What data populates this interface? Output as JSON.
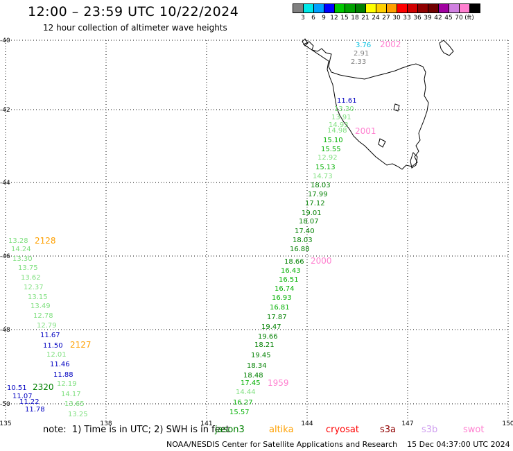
{
  "title": "12:00 – 23:59 UTC 10/22/2024",
  "subtitle": "12 hour collection of altimeter wave heights",
  "legend": {
    "colors": [
      "#808080",
      "#00e8e8",
      "#00a0ff",
      "#0000ff",
      "#00c800",
      "#00a000",
      "#008000",
      "#ffff00",
      "#ffd000",
      "#ffa000",
      "#ff0000",
      "#d00000",
      "#900000",
      "#700000",
      "#a000a0",
      "#d080e0",
      "#ff80d0",
      "#000000"
    ],
    "labels": [
      "3",
      "6",
      "9",
      "12",
      "15",
      "18",
      "21",
      "24",
      "27",
      "30",
      "33",
      "36",
      "39",
      "42",
      "45",
      "70",
      "(ft)"
    ]
  },
  "axes": {
    "lon_ticks": [
      "135",
      "138",
      "141",
      "144",
      "147",
      "150"
    ],
    "lat_ticks": [
      "-40",
      "-42",
      "-44",
      "-46",
      "-48",
      "-50"
    ]
  },
  "tracks": [
    {
      "time": "2002",
      "color": "#ff80d0",
      "points": [
        {
          "v": "3.76",
          "c": "#00c0e0"
        },
        {
          "v": "2.91",
          "c": "#808080"
        },
        {
          "v": "2.33",
          "c": "#808080"
        }
      ]
    },
    {
      "time": "2001",
      "color": "#ff80d0",
      "points": [
        {
          "v": "11.61",
          "c": "#0000c0"
        },
        {
          "v": "13.30",
          "c": "#80e080"
        },
        {
          "v": "13.91",
          "c": "#80e080"
        },
        {
          "v": "14.93",
          "c": "#80e080"
        },
        {
          "v": "14.98",
          "c": "#80e080"
        },
        {
          "v": "15.10",
          "c": "#00b000"
        },
        {
          "v": "15.55",
          "c": "#00b000"
        },
        {
          "v": "12.92",
          "c": "#80e080"
        },
        {
          "v": "15.13",
          "c": "#00b000"
        },
        {
          "v": "14.73",
          "c": "#80e080"
        },
        {
          "v": "18.03",
          "c": "#008000"
        },
        {
          "v": "17.99",
          "c": "#008000"
        },
        {
          "v": "17.12",
          "c": "#008000"
        },
        {
          "v": "19.01",
          "c": "#008000"
        },
        {
          "v": "18.07",
          "c": "#008000"
        },
        {
          "v": "17.40",
          "c": "#008000"
        },
        {
          "v": "18.03",
          "c": "#008000"
        },
        {
          "v": "16.88",
          "c": "#008000"
        }
      ]
    },
    {
      "time": "2000",
      "color": "#ff80d0",
      "points": [
        {
          "v": "18.66",
          "c": "#008000"
        },
        {
          "v": "16.43",
          "c": "#00b000"
        },
        {
          "v": "16.51",
          "c": "#00b000"
        },
        {
          "v": "16.74",
          "c": "#00b000"
        },
        {
          "v": "16.93",
          "c": "#00b000"
        },
        {
          "v": "16.81",
          "c": "#00b000"
        },
        {
          "v": "17.87",
          "c": "#008000"
        },
        {
          "v": "19.47",
          "c": "#008000"
        },
        {
          "v": "19.66",
          "c": "#008000"
        },
        {
          "v": "18.21",
          "c": "#008000"
        },
        {
          "v": "19.45",
          "c": "#008000"
        },
        {
          "v": "18.34",
          "c": "#008000"
        },
        {
          "v": "18.48",
          "c": "#008000"
        },
        {
          "v": "17.45",
          "c": "#00b000"
        }
      ]
    },
    {
      "time": "1959",
      "color": "#ff80d0",
      "points": [
        {
          "v": "14.44",
          "c": "#80e080"
        },
        {
          "v": "16.27",
          "c": "#00b000"
        },
        {
          "v": "15.57",
          "c": "#00b000"
        }
      ]
    },
    {
      "time": "2128",
      "color": "#ffa000",
      "points": [
        {
          "v": "13.28",
          "c": "#80e080"
        },
        {
          "v": "14.24",
          "c": "#80e080"
        },
        {
          "v": "13.30",
          "c": "#80e080"
        },
        {
          "v": "13.75",
          "c": "#80e080"
        },
        {
          "v": "13.62",
          "c": "#80e080"
        },
        {
          "v": "12.37",
          "c": "#80e080"
        },
        {
          "v": "13.15",
          "c": "#80e080"
        },
        {
          "v": "13.49",
          "c": "#80e080"
        },
        {
          "v": "12.78",
          "c": "#80e080"
        },
        {
          "v": "12.79",
          "c": "#80e080"
        },
        {
          "v": "11.67",
          "c": "#0000c0"
        }
      ]
    },
    {
      "time": "2127",
      "color": "#ffa000",
      "points": [
        {
          "v": "11.50",
          "c": "#0000c0"
        },
        {
          "v": "12.01",
          "c": "#80e080"
        },
        {
          "v": "11.46",
          "c": "#0000c0"
        },
        {
          "v": "11.88",
          "c": "#0000c0"
        },
        {
          "v": "12.19",
          "c": "#80e080"
        },
        {
          "v": "14.17",
          "c": "#80e080"
        },
        {
          "v": "13.65",
          "c": "#80e080"
        },
        {
          "v": "13.25",
          "c": "#80e080"
        }
      ]
    },
    {
      "time": "2320",
      "color": "#008000",
      "points": [
        {
          "v": "10.51",
          "c": "#0000c0"
        },
        {
          "v": "11.07",
          "c": "#0000c0"
        },
        {
          "v": "11.22",
          "c": "#0000c0"
        },
        {
          "v": "11.78",
          "c": "#0000c0"
        }
      ]
    }
  ],
  "footnote": "note:  1) Time is in UTC; 2) SWH is in feet",
  "satellites": [
    {
      "name": "jason3",
      "color": "#008000"
    },
    {
      "name": "altika",
      "color": "#ffa000"
    },
    {
      "name": "cryosat",
      "color": "#ff0000"
    },
    {
      "name": "s3a",
      "color": "#900000"
    },
    {
      "name": "s3b",
      "color": "#d0a0f0"
    },
    {
      "name": "swot",
      "color": "#ff80d0"
    }
  ],
  "credit": "NOAA/NESDIS Center for Satellite Applications and Research    15 Dec 04:37:00 UTC 2024"
}
